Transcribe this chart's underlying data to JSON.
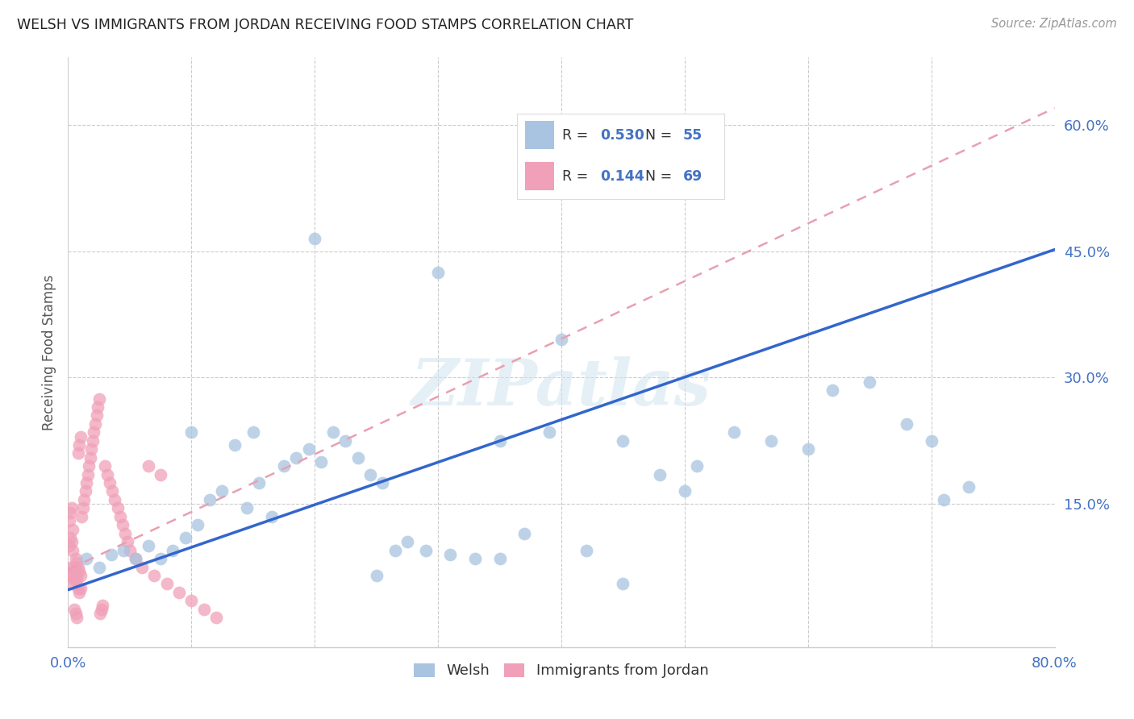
{
  "title": "WELSH VS IMMIGRANTS FROM JORDAN RECEIVING FOOD STAMPS CORRELATION CHART",
  "source": "Source: ZipAtlas.com",
  "ylabel": "Receiving Food Stamps",
  "xlim": [
    0.0,
    0.8
  ],
  "ylim": [
    -0.02,
    0.68
  ],
  "welsh_color": "#a8c4e0",
  "jordan_color": "#f0a0b8",
  "welsh_line_color": "#3366cc",
  "jordan_line_color": "#e8a0b0",
  "watermark": "ZIPatlas",
  "background_color": "#ffffff",
  "title_color": "#222222",
  "tick_color": "#4472c4",
  "ytick_right_vals": [
    0.15,
    0.3,
    0.45,
    0.6
  ],
  "ytick_right_labels": [
    "15.0%",
    "30.0%",
    "45.0%",
    "60.0%"
  ],
  "xtick_vals": [
    0.0,
    0.1,
    0.2,
    0.3,
    0.4,
    0.5,
    0.6,
    0.7,
    0.8
  ],
  "welsh_x": [
    0.015,
    0.025,
    0.035,
    0.045,
    0.055,
    0.065,
    0.075,
    0.085,
    0.095,
    0.105,
    0.115,
    0.125,
    0.135,
    0.145,
    0.155,
    0.165,
    0.175,
    0.185,
    0.195,
    0.205,
    0.215,
    0.225,
    0.235,
    0.245,
    0.255,
    0.265,
    0.275,
    0.29,
    0.31,
    0.33,
    0.35,
    0.37,
    0.39,
    0.42,
    0.45,
    0.48,
    0.51,
    0.54,
    0.57,
    0.6,
    0.62,
    0.65,
    0.68,
    0.71,
    0.73,
    0.5,
    0.4,
    0.3,
    0.2,
    0.1,
    0.15,
    0.25,
    0.35,
    0.45,
    0.7
  ],
  "welsh_y": [
    0.085,
    0.075,
    0.09,
    0.095,
    0.085,
    0.1,
    0.085,
    0.095,
    0.11,
    0.125,
    0.155,
    0.165,
    0.22,
    0.145,
    0.175,
    0.135,
    0.195,
    0.205,
    0.215,
    0.2,
    0.235,
    0.225,
    0.205,
    0.185,
    0.175,
    0.095,
    0.105,
    0.095,
    0.09,
    0.085,
    0.085,
    0.115,
    0.235,
    0.095,
    0.225,
    0.185,
    0.195,
    0.235,
    0.225,
    0.215,
    0.285,
    0.295,
    0.245,
    0.155,
    0.17,
    0.165,
    0.345,
    0.425,
    0.465,
    0.235,
    0.235,
    0.065,
    0.225,
    0.055,
    0.225
  ],
  "jordan_x": [
    0.001,
    0.002,
    0.003,
    0.004,
    0.005,
    0.006,
    0.007,
    0.008,
    0.009,
    0.01,
    0.001,
    0.002,
    0.003,
    0.004,
    0.005,
    0.006,
    0.007,
    0.008,
    0.009,
    0.01,
    0.001,
    0.002,
    0.003,
    0.004,
    0.005,
    0.006,
    0.007,
    0.008,
    0.009,
    0.01,
    0.011,
    0.012,
    0.013,
    0.014,
    0.015,
    0.016,
    0.017,
    0.018,
    0.019,
    0.02,
    0.021,
    0.022,
    0.023,
    0.024,
    0.025,
    0.026,
    0.027,
    0.028,
    0.03,
    0.032,
    0.034,
    0.036,
    0.038,
    0.04,
    0.042,
    0.044,
    0.046,
    0.048,
    0.05,
    0.055,
    0.06,
    0.07,
    0.08,
    0.09,
    0.1,
    0.11,
    0.12,
    0.065,
    0.075
  ],
  "jordan_y": [
    0.065,
    0.075,
    0.065,
    0.055,
    0.06,
    0.07,
    0.06,
    0.05,
    0.045,
    0.05,
    0.1,
    0.11,
    0.105,
    0.095,
    0.075,
    0.085,
    0.08,
    0.075,
    0.07,
    0.065,
    0.13,
    0.14,
    0.145,
    0.12,
    0.025,
    0.02,
    0.015,
    0.21,
    0.22,
    0.23,
    0.135,
    0.145,
    0.155,
    0.165,
    0.175,
    0.185,
    0.195,
    0.205,
    0.215,
    0.225,
    0.235,
    0.245,
    0.255,
    0.265,
    0.275,
    0.02,
    0.025,
    0.03,
    0.195,
    0.185,
    0.175,
    0.165,
    0.155,
    0.145,
    0.135,
    0.125,
    0.115,
    0.105,
    0.095,
    0.085,
    0.075,
    0.065,
    0.055,
    0.045,
    0.035,
    0.025,
    0.015,
    0.195,
    0.185
  ],
  "welsh_line_x0": 0.0,
  "welsh_line_y0": 0.048,
  "welsh_line_x1": 0.8,
  "welsh_line_y1": 0.452,
  "jordan_line_x0": 0.0,
  "jordan_line_y0": 0.072,
  "jordan_line_x1": 0.8,
  "jordan_line_y1": 0.62
}
